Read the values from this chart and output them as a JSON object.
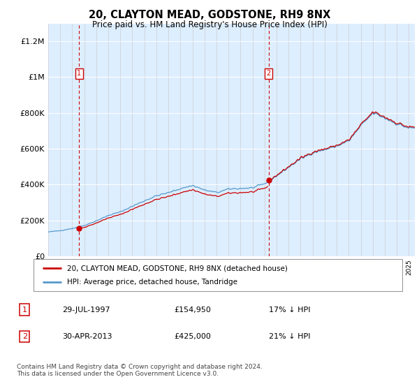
{
  "title": "20, CLAYTON MEAD, GODSTONE, RH9 8NX",
  "subtitle": "Price paid vs. HM Land Registry's House Price Index (HPI)",
  "legend_line1": "20, CLAYTON MEAD, GODSTONE, RH9 8NX (detached house)",
  "legend_line2": "HPI: Average price, detached house, Tandridge",
  "transaction1_date": "29-JUL-1997",
  "transaction1_price": "£154,950",
  "transaction1_hpi": "17% ↓ HPI",
  "transaction2_date": "30-APR-2013",
  "transaction2_price": "£425,000",
  "transaction2_hpi": "21% ↓ HPI",
  "footer": "Contains HM Land Registry data © Crown copyright and database right 2024.\nThis data is licensed under the Open Government Licence v3.0.",
  "plot_bg_color": "#ddeeff",
  "hpi_line_color": "#5599cc",
  "price_line_color": "#cc0000",
  "vline_color": "#cc0000",
  "ylim": [
    0,
    1300000
  ],
  "yticks": [
    0,
    200000,
    400000,
    600000,
    800000,
    1000000,
    1200000
  ],
  "ytick_labels": [
    "£0",
    "£200K",
    "£400K",
    "£600K",
    "£800K",
    "£1M",
    "£1.2M"
  ],
  "t1_year": 1997.583,
  "t2_year": 2013.33,
  "p1": 154950,
  "p2": 425000
}
